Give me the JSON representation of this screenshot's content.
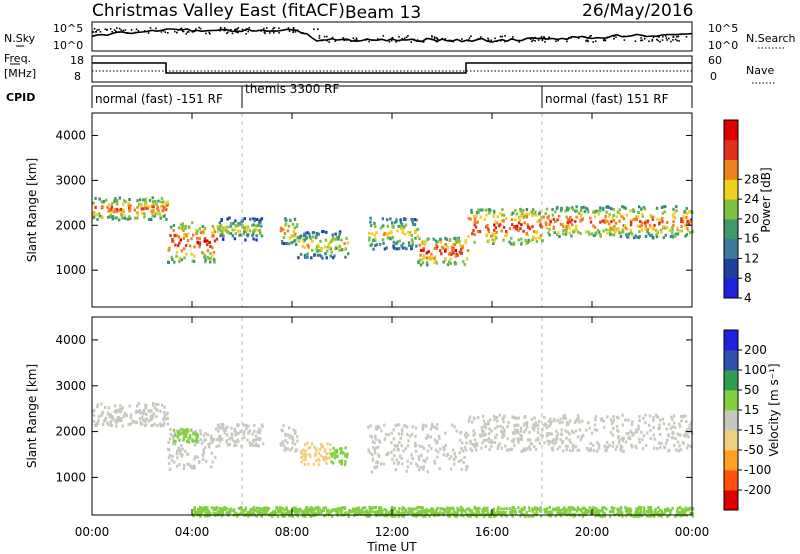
{
  "header": {
    "station": "Christmas Valley East (fitACF)",
    "beam": "Beam 13",
    "date": "26/May/2016"
  },
  "nsky_panel": {
    "left_label": "N.Sky",
    "right_label": "N.Search",
    "left_ticks": [
      "10^5",
      "10^0"
    ],
    "right_ticks": [
      "10^5",
      "10^0"
    ]
  },
  "freq_panel": {
    "left_label_1": "Freq.",
    "left_label_2": "[MHz]",
    "right_label": "Nave",
    "left_ticks": [
      "18",
      "8"
    ],
    "right_ticks": [
      "60",
      "0"
    ]
  },
  "cpid_panel": {
    "label": "CPID",
    "segments": [
      {
        "text": "normal (fast) -151 RF",
        "start_hour": 0
      },
      {
        "text": "themis 3300 RF",
        "start_hour": 6
      },
      {
        "text": "normal (fast) 151 RF",
        "start_hour": 18
      }
    ]
  },
  "power_panel": {
    "ylabel": "Slant Range [km]",
    "yticks": [
      "4000",
      "3000",
      "2000",
      "1000"
    ],
    "colorbar_label": "Power [dB]",
    "colorbar_ticks": [
      "28",
      "24",
      "20",
      "16",
      "12",
      "8",
      "4"
    ]
  },
  "velocity_panel": {
    "ylabel": "Slant Range [km]",
    "yticks": [
      "4000",
      "3000",
      "2000",
      "1000"
    ],
    "colorbar_label": "Velocity [m s⁻¹]",
    "colorbar_ticks": [
      "200",
      "100",
      "50",
      "15",
      "-15",
      "-50",
      "-100",
      "-200"
    ]
  },
  "xaxis": {
    "label": "Time UT",
    "ticks": [
      "00:00",
      "04:00",
      "08:00",
      "12:00",
      "16:00",
      "20:00",
      "00:00"
    ]
  },
  "colors": {
    "power_scale": [
      "#2020e0",
      "#2040a0",
      "#3a7a9a",
      "#3f9a6a",
      "#7fc040",
      "#f0d020",
      "#f08020",
      "#e03020",
      "#e00000"
    ],
    "velocity_scale": [
      "#e00000",
      "#ff5010",
      "#ffa020",
      "#f0d080",
      "#c8c8c0",
      "#80d040",
      "#2f9f4f",
      "#3050b0",
      "#2020e0"
    ]
  },
  "chart_data": {
    "type": "heatmap",
    "x_range_hours": [
      0,
      24
    ],
    "y_range_km": [
      180,
      4500
    ],
    "power_range_db": [
      0,
      30
    ],
    "velocity_range_ms": [
      -250,
      250
    ],
    "power_echo_regions": [
      {
        "t0": 0.0,
        "t1": 3.0,
        "r0": 2150,
        "r1": 2650,
        "power": 20
      },
      {
        "t0": 3.0,
        "t1": 5.0,
        "r0": 1200,
        "r1": 2100,
        "power": 22
      },
      {
        "t0": 5.0,
        "t1": 6.8,
        "r0": 1700,
        "r1": 2200,
        "power": 14
      },
      {
        "t0": 7.5,
        "t1": 8.2,
        "r0": 1600,
        "r1": 2200,
        "power": 18
      },
      {
        "t0": 8.2,
        "t1": 10.2,
        "r0": 1300,
        "r1": 1900,
        "power": 16
      },
      {
        "t0": 11.0,
        "t1": 13.0,
        "r0": 1500,
        "r1": 2200,
        "power": 16
      },
      {
        "t0": 13.0,
        "t1": 15.0,
        "r0": 1150,
        "r1": 1750,
        "power": 22
      },
      {
        "t0": 15.0,
        "t1": 18.0,
        "r0": 1600,
        "r1": 2400,
        "power": 22
      },
      {
        "t0": 18.0,
        "t1": 24.0,
        "r0": 1750,
        "r1": 2450,
        "power": 20
      }
    ],
    "velocity_echo_regions": [
      {
        "t0": 0.0,
        "t1": 3.0,
        "r0": 2150,
        "r1": 2650,
        "velocity": 0
      },
      {
        "t0": 3.0,
        "t1": 5.0,
        "r0": 1200,
        "r1": 2100,
        "velocity": 0
      },
      {
        "t0": 3.2,
        "t1": 4.2,
        "r0": 1800,
        "r1": 2100,
        "velocity": 30
      },
      {
        "t0": 5.0,
        "t1": 6.8,
        "r0": 1700,
        "r1": 2200,
        "velocity": 5
      },
      {
        "t0": 7.5,
        "t1": 8.2,
        "r0": 1600,
        "r1": 2200,
        "velocity": 0
      },
      {
        "t0": 8.3,
        "t1": 9.5,
        "r0": 1300,
        "r1": 1800,
        "velocity": -40
      },
      {
        "t0": 9.5,
        "t1": 10.2,
        "r0": 1300,
        "r1": 1700,
        "velocity": 30
      },
      {
        "t0": 11.0,
        "t1": 15.0,
        "r0": 1150,
        "r1": 2200,
        "velocity": 0
      },
      {
        "t0": 15.0,
        "t1": 24.0,
        "r0": 1600,
        "r1": 2400,
        "velocity": 0
      },
      {
        "t0": 4.0,
        "t1": 24.0,
        "r0": 180,
        "r1": 380,
        "velocity": 30
      }
    ]
  }
}
